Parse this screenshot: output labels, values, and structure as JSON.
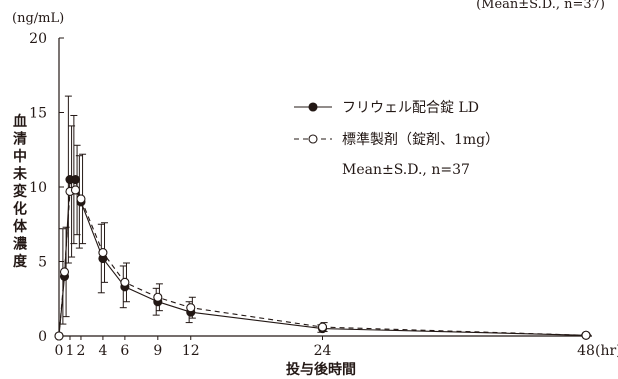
{
  "chart_data": {
    "type": "line",
    "top_note": "(Mean±S.D., n=37)",
    "ylabel": "血清中未変化体濃度",
    "y_unit": "(ng/mL)",
    "xlabel": "投与後時間",
    "x_unit": "(hr)",
    "xlim": [
      0,
      48
    ],
    "ylim": [
      0,
      20
    ],
    "x_ticks": [
      0,
      1,
      2,
      4,
      6,
      9,
      12,
      24,
      48
    ],
    "x_tick_labels": [
      "0",
      "1",
      "2",
      "4",
      "6",
      "9",
      "12",
      "24",
      "48"
    ],
    "y_ticks": [
      0,
      5,
      10,
      15,
      20
    ],
    "y_tick_labels": [
      "0",
      "5",
      "10",
      "15",
      "20"
    ],
    "legend_placement": "upper-right",
    "legend_note": "Mean±S.D., n=37",
    "series": [
      {
        "name": "フリウェル配合錠 LD",
        "marker": "filled-circle",
        "line": "solid",
        "color": "#231815",
        "x": [
          0,
          0.5,
          1,
          1.5,
          2,
          4,
          6,
          9,
          12,
          24,
          48
        ],
        "y": [
          0,
          4.0,
          10.5,
          10.5,
          9.0,
          5.2,
          3.3,
          2.3,
          1.6,
          0.5,
          0.05
        ],
        "sd": [
          0,
          3.2,
          5.6,
          4.3,
          3.1,
          2.3,
          1.4,
          0.9,
          0.7,
          0.25,
          0.03
        ]
      },
      {
        "name": "標準製剤（錠剤、1mg）",
        "marker": "open-circle",
        "line": "dashed",
        "color": "#231815",
        "x": [
          0,
          0.5,
          1,
          1.5,
          2,
          4,
          6,
          9,
          12,
          24,
          48
        ],
        "y": [
          0,
          4.3,
          9.7,
          9.8,
          9.2,
          5.6,
          3.6,
          2.6,
          1.9,
          0.6,
          0.05
        ],
        "sd": [
          0,
          3.0,
          4.4,
          3.0,
          3.0,
          2.0,
          1.3,
          0.9,
          0.7,
          0.3,
          0.03
        ]
      }
    ]
  }
}
